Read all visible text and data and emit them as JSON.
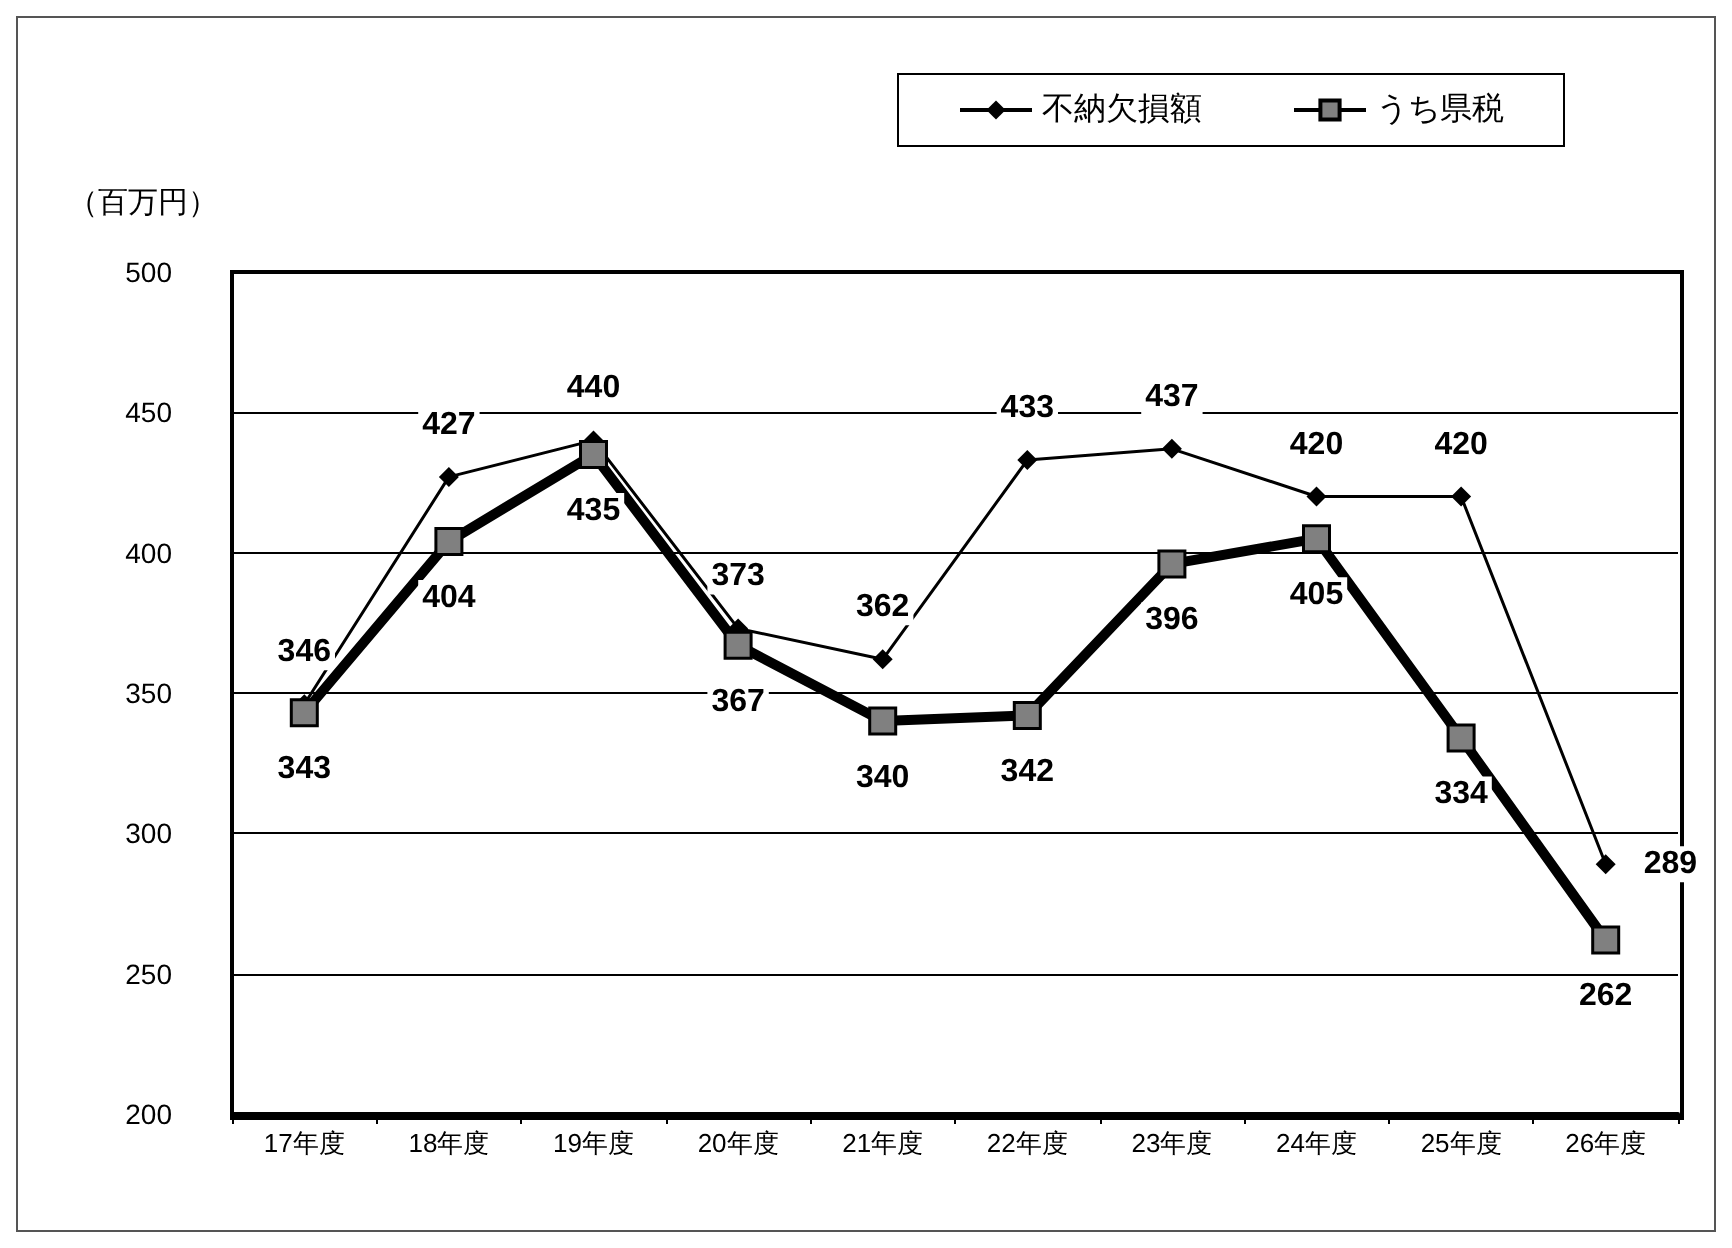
{
  "chart_data": {
    "type": "line",
    "ylabel": "（百万円）",
    "categories": [
      "17年度",
      "18年度",
      "19年度",
      "20年度",
      "21年度",
      "22年度",
      "23年度",
      "24年度",
      "25年度",
      "26年度"
    ],
    "series": [
      {
        "name": "不納欠損額",
        "color": "#000000",
        "marker": "diamond",
        "values": [
          346,
          427,
          440,
          373,
          362,
          433,
          437,
          420,
          420,
          289
        ]
      },
      {
        "name": "うち県税",
        "color": "#808080",
        "marker": "square",
        "values": [
          343,
          404,
          435,
          367,
          340,
          342,
          396,
          405,
          334,
          262
        ]
      }
    ],
    "ylim": [
      200,
      500
    ],
    "yticks": [
      200,
      250,
      300,
      350,
      400,
      450,
      500
    ],
    "grid": "y",
    "legend": "top right",
    "data_labels": true
  }
}
